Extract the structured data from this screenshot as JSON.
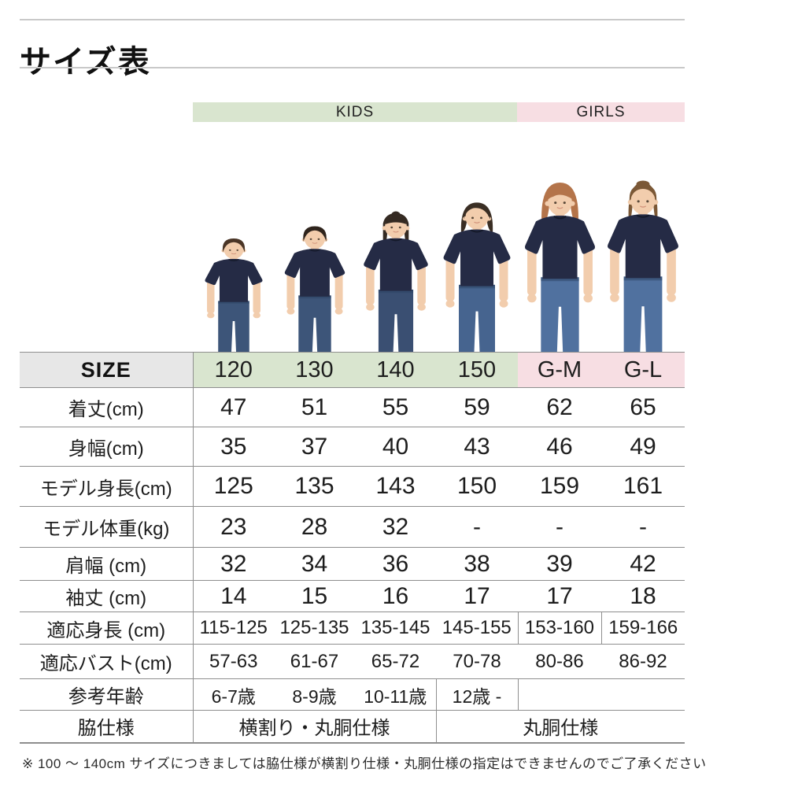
{
  "page": {
    "title": "サイズ表",
    "footnote": "※ 100 〜 140cm サイズにつきましては脇仕様が横割り仕様・丸胴仕様の指定はできませんのでご了承ください"
  },
  "groups": [
    {
      "label": "KIDS",
      "span": 4
    },
    {
      "label": "GIRLS",
      "span": 2
    }
  ],
  "table": {
    "header_label": "SIZE",
    "columns": [
      "120",
      "130",
      "140",
      "150",
      "G-M",
      "G-L"
    ],
    "rows": [
      {
        "label": "着丈(cm)",
        "size": "lg",
        "values": [
          "47",
          "51",
          "55",
          "59",
          "62",
          "65"
        ]
      },
      {
        "label": "身幅(cm)",
        "size": "lg",
        "values": [
          "35",
          "37",
          "40",
          "43",
          "46",
          "49"
        ]
      },
      {
        "label": "モデル身長(cm)",
        "size": "lg",
        "values": [
          "125",
          "135",
          "143",
          "150",
          "159",
          "161"
        ]
      },
      {
        "label": "モデル体重(kg)",
        "size": "lg",
        "values": [
          "23",
          "28",
          "32",
          "-",
          "-",
          "-"
        ]
      },
      {
        "label": "肩幅 (cm)",
        "size": "lg",
        "values": [
          "32",
          "34",
          "36",
          "38",
          "39",
          "42"
        ]
      },
      {
        "label": "袖丈 (cm)",
        "size": "lg",
        "values": [
          "14",
          "15",
          "16",
          "17",
          "17",
          "18"
        ]
      },
      {
        "label": "適応身長 (cm)",
        "size": "md",
        "divide": [
          4,
          5
        ],
        "values": [
          "115-125",
          "125-135",
          "135-145",
          "145-155",
          "153-160",
          "159-166"
        ]
      },
      {
        "label": "適応バスト(cm)",
        "size": "md",
        "values": [
          "57-63",
          "61-67",
          "65-72",
          "70-78",
          "80-86",
          "86-92"
        ]
      },
      {
        "label": "参考年齢",
        "size": "sm",
        "cells": [
          {
            "text": "6-7歳"
          },
          {
            "text": "8-9歳"
          },
          {
            "text": "10-11歳"
          },
          {
            "text": "12歳 -",
            "bl": true,
            "br": true
          },
          {
            "text": "",
            "colspan": 2
          }
        ]
      },
      {
        "label": "脇仕様",
        "size": "md",
        "cells": [
          {
            "text": "横割り・丸胴仕様",
            "colspan": 3
          },
          {
            "text": "丸胴仕様",
            "colspan": 3,
            "bl": true
          }
        ]
      }
    ]
  },
  "models": [
    {
      "size": "120",
      "person": "boy",
      "hair": "#4a3526",
      "jeans": "#3d5579"
    },
    {
      "size": "130",
      "person": "boy",
      "hair": "#2f241c",
      "jeans": "#3d5579"
    },
    {
      "size": "140",
      "person": "girl-long",
      "hair": "#342a22",
      "jeans": "#3a4f72"
    },
    {
      "size": "150",
      "person": "girl-bob",
      "hair": "#3a2e24",
      "jeans": "#46648f"
    },
    {
      "size": "G-M",
      "person": "woman-bob",
      "hair": "#b4744a",
      "jeans": "#50719f"
    },
    {
      "size": "G-L",
      "person": "woman-updo",
      "hair": "#7b5836",
      "jeans": "#50719f"
    }
  ],
  "colors": {
    "kids_band": "#d9e5cf",
    "girls_band": "#f7dee3",
    "size_cell": "#e7e7e7",
    "grid_line": "#8e8e8e",
    "title_line": "#c9c9c9",
    "text": "#1d1d1d",
    "shirt_navy": "#252b45",
    "collar_navy": "#141929",
    "skin": "#f2cdad",
    "denim_seam": "#2e4566"
  }
}
